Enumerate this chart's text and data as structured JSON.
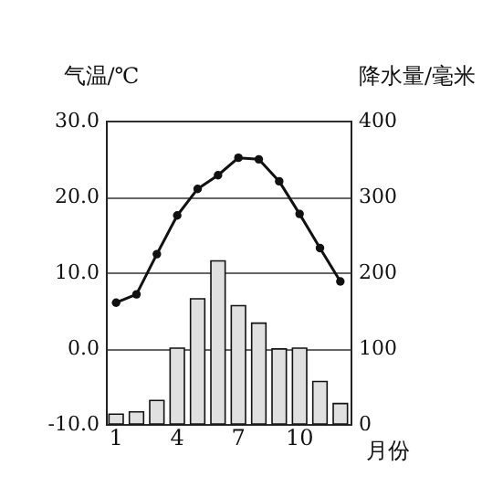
{
  "chart_data": {
    "type": "bar",
    "categories": [
      "1",
      null,
      null,
      "4",
      null,
      null,
      "7",
      null,
      null,
      "10",
      null,
      null
    ],
    "xlabel": "月份",
    "ylabel": "气温/℃",
    "y2label": "降水量/毫米",
    "series": [
      {
        "axis": "y2",
        "color": "#e0e0e0",
        "values": [
          13,
          16,
          31,
          100,
          165,
          215,
          156,
          133,
          99,
          100,
          56,
          27
        ]
      },
      {
        "type": "line",
        "axis": "y",
        "color": "#111111",
        "values": [
          6.0,
          7.1,
          12.4,
          17.5,
          21.0,
          22.8,
          25.1,
          24.9,
          22.0,
          17.7,
          13.2,
          8.8
        ]
      }
    ],
    "ylim": [
      -10,
      30
    ],
    "yticks": [
      {
        "value": -10,
        "label": "-10.0"
      },
      {
        "value": 0,
        "label": "0.0"
      },
      {
        "value": 10,
        "label": "10.0"
      },
      {
        "value": 20,
        "label": "20.0"
      },
      {
        "value": 30,
        "label": "30.0"
      }
    ],
    "y2lim": [
      0,
      400
    ],
    "y2ticks": [
      0,
      100,
      200,
      300,
      400
    ],
    "grid": "y",
    "marker": "circle",
    "line_style": "solid"
  }
}
